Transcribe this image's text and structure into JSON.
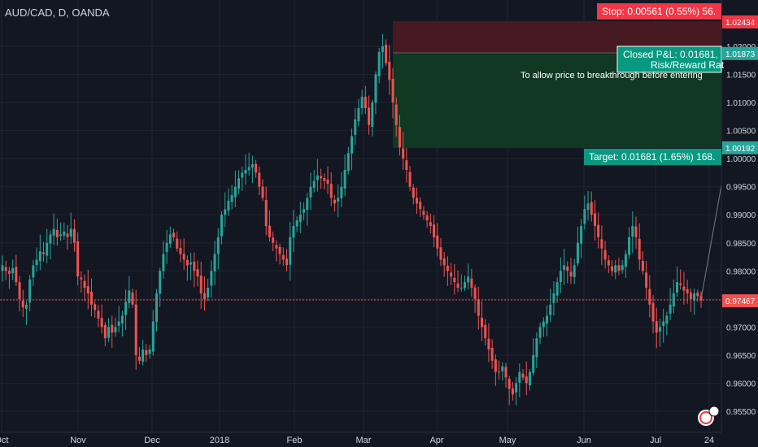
{
  "header": {
    "symbol_title": "AUD/CAD, D, OANDA"
  },
  "colors": {
    "background": "#131722",
    "up": "#26a69a",
    "down": "#ef5350",
    "grid": "#1f2430",
    "axis_text": "#d1d4dc",
    "stop_zone": "#4a1a22",
    "target_zone": "#103a24",
    "stop_label": "#f23645",
    "target_label": "#089981",
    "price_line": "#ef5350"
  },
  "price_axis": {
    "ticks": [
      "1.02000",
      "1.01500",
      "1.01000",
      "1.00500",
      "1.00000",
      "0.99500",
      "0.99000",
      "0.98500",
      "0.98000",
      "0.97500",
      "0.97000",
      "0.96500",
      "0.96000",
      "0.95500"
    ],
    "badges": [
      {
        "name": "stop-price-badge",
        "text": "1.02434",
        "color": "#f23645"
      },
      {
        "name": "entry-price-badge",
        "text": "1.01873",
        "color": "#26a69a"
      },
      {
        "name": "target-price-badge",
        "text": "1.00192",
        "color": "#26a69a"
      },
      {
        "name": "current-price-badge",
        "text": "0.97467",
        "color": "#ef5350"
      }
    ]
  },
  "time_axis": {
    "labels": [
      "Oct",
      "Nov",
      "Dec",
      "2018",
      "Feb",
      "Mar",
      "Apr",
      "May",
      "Jun",
      "Jul",
      "24"
    ]
  },
  "position_tool": {
    "stop_text": "Stop: 0.00561 (0.55%) 56.",
    "closed_pl_text": "Closed P&L: 0.01681,",
    "risk_reward_text": "Risk/Reward Rat",
    "note_text": "To allow price to breakthrough before entering",
    "target_text": "Target: 0.01681 (1.65%) 168."
  },
  "chart_data": {
    "type": "candlestick",
    "title": "AUD/CAD, D, OANDA",
    "ylim": [
      0.9515,
      1.0255
    ],
    "x_labels": [
      "Oct",
      "Nov",
      "Dec",
      "2018",
      "Feb",
      "Mar",
      "Apr",
      "May",
      "Jun",
      "Jul",
      "24"
    ],
    "close_path": [
      0.981,
      0.98,
      0.9795,
      0.9805,
      0.978,
      0.975,
      0.9735,
      0.974,
      0.9785,
      0.981,
      0.982,
      0.9835,
      0.983,
      0.985,
      0.9865,
      0.9875,
      0.986,
      0.9865,
      0.987,
      0.986,
      0.9875,
      0.985,
      0.979,
      0.9785,
      0.977,
      0.976,
      0.974,
      0.973,
      0.9715,
      0.97,
      0.968,
      0.97,
      0.969,
      0.97,
      0.971,
      0.972,
      0.9745,
      0.9765,
      0.974,
      0.965,
      0.964,
      0.966,
      0.965,
      0.966,
      0.971,
      0.976,
      0.98,
      0.983,
      0.985,
      0.9865,
      0.986,
      0.984,
      0.983,
      0.982,
      0.981,
      0.9815,
      0.98,
      0.979,
      0.976,
      0.975,
      0.977,
      0.98,
      0.983,
      0.986,
      0.99,
      0.991,
      0.9925,
      0.9935,
      0.995,
      0.9965,
      0.9975,
      0.998,
      0.9985,
      0.999,
      0.9975,
      0.995,
      0.993,
      0.988,
      0.986,
      0.985,
      0.984,
      0.983,
      0.982,
      0.981,
      0.986,
      0.988,
      0.989,
      0.99,
      0.991,
      0.993,
      0.995,
      0.996,
      0.997,
      0.9965,
      0.996,
      0.9955,
      0.993,
      0.992,
      0.993,
      0.995,
      0.998,
      1.001,
      1.004,
      1.007,
      1.009,
      1.011,
      1.009,
      1.006,
      1.01,
      1.015,
      1.019,
      1.02,
      1.017,
      1.014,
      1.01,
      1.006,
      1.002,
      1.0,
      0.998,
      0.995,
      0.993,
      0.992,
      0.991,
      0.99,
      0.989,
      0.988,
      0.986,
      0.984,
      0.982,
      0.981,
      0.98,
      0.979,
      0.978,
      0.977,
      0.977,
      0.978,
      0.979,
      0.977,
      0.975,
      0.972,
      0.97,
      0.968,
      0.966,
      0.964,
      0.962,
      0.962,
      0.963,
      0.961,
      0.959,
      0.958,
      0.96,
      0.962,
      0.961,
      0.96,
      0.962,
      0.965,
      0.968,
      0.97,
      0.971,
      0.972,
      0.974,
      0.976,
      0.978,
      0.98,
      0.981,
      0.98,
      0.979,
      0.981,
      0.985,
      0.988,
      0.991,
      0.992,
      0.99,
      0.988,
      0.986,
      0.984,
      0.982,
      0.981,
      0.98,
      0.981,
      0.98,
      0.981,
      0.983,
      0.986,
      0.988,
      0.986,
      0.982,
      0.98,
      0.977,
      0.974,
      0.971,
      0.969,
      0.97,
      0.971,
      0.972,
      0.974,
      0.976,
      0.978,
      0.9775,
      0.9765,
      0.976,
      0.975,
      0.976,
      0.9755,
      0.9747
    ]
  }
}
